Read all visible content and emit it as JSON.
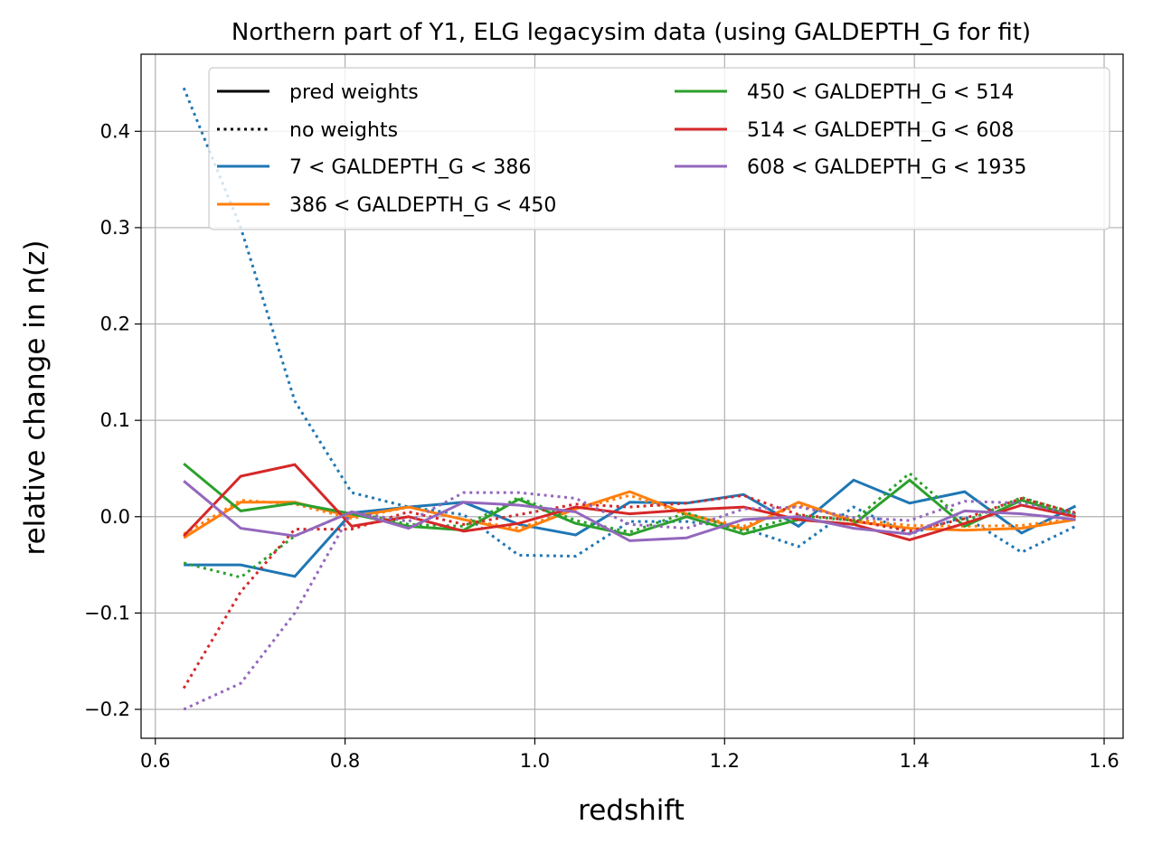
{
  "chart_data": {
    "type": "line",
    "title": "Northern part of Y1, ELG legacysim data (using GALDEPTH_G for fit)",
    "xlabel": "redshift",
    "ylabel": "relative change in n(z)",
    "xlim": [
      0.585,
      1.62
    ],
    "ylim": [
      -0.23,
      0.48
    ],
    "xticks": [
      0.6,
      0.8,
      1.0,
      1.2,
      1.4,
      1.6
    ],
    "xtick_labels": [
      "0.6",
      "0.8",
      "1.0",
      "1.2",
      "1.4",
      "1.6"
    ],
    "yticks": [
      -0.2,
      -0.1,
      0.0,
      0.1,
      0.2,
      0.3,
      0.4
    ],
    "ytick_labels": [
      "−0.2",
      "−0.1",
      "0.0",
      "0.1",
      "0.2",
      "0.3",
      "0.4"
    ],
    "grid": true,
    "legend_position": "top",
    "legend_style_entries": [
      {
        "label": "pred weights",
        "style": "solid",
        "color": "#000000"
      },
      {
        "label": "no weights",
        "style": "dotted",
        "color": "#000000"
      }
    ],
    "x": [
      0.63,
      0.69,
      0.747,
      0.807,
      0.867,
      0.925,
      0.983,
      1.043,
      1.1,
      1.16,
      1.22,
      1.278,
      1.336,
      1.395,
      1.453,
      1.513,
      1.57
    ],
    "series": [
      {
        "name": "7 < GALDEPTH_G < 386",
        "color": "#1f77b4",
        "pred": [
          -0.05,
          -0.05,
          -0.062,
          0.004,
          0.01,
          0.015,
          -0.008,
          -0.019,
          0.015,
          0.014,
          0.023,
          -0.01,
          0.038,
          0.014,
          0.026,
          -0.017,
          0.011
        ],
        "none": [
          0.445,
          0.3,
          0.12,
          0.025,
          0.01,
          0.002,
          -0.04,
          -0.041,
          -0.005,
          -0.005,
          -0.012,
          -0.031,
          0.01,
          -0.018,
          0.0,
          -0.037,
          -0.01
        ]
      },
      {
        "name": "386 < GALDEPTH_G < 450",
        "color": "#ff7f0e",
        "pred": [
          -0.022,
          0.015,
          0.015,
          0.0,
          0.01,
          -0.003,
          -0.015,
          0.008,
          0.026,
          0.003,
          -0.013,
          0.015,
          -0.005,
          -0.012,
          -0.014,
          -0.012,
          -0.003
        ],
        "none": [
          -0.018,
          0.017,
          0.013,
          -0.002,
          0.01,
          -0.003,
          -0.012,
          0.008,
          0.022,
          0.002,
          -0.01,
          0.012,
          -0.003,
          -0.009,
          -0.01,
          -0.009,
          -0.002
        ]
      },
      {
        "name": "450 < GALDEPTH_G < 514",
        "color": "#2ca02c",
        "pred": [
          0.055,
          0.006,
          0.014,
          0.003,
          -0.01,
          -0.014,
          0.018,
          -0.007,
          -0.019,
          0.0,
          -0.018,
          -0.003,
          -0.008,
          0.038,
          -0.01,
          0.017,
          0.0
        ],
        "none": [
          -0.048,
          -0.063,
          -0.02,
          0.005,
          -0.008,
          -0.01,
          0.02,
          -0.004,
          -0.016,
          0.004,
          -0.015,
          0.001,
          -0.004,
          0.045,
          -0.005,
          0.02,
          0.003
        ]
      },
      {
        "name": "514 < GALDEPTH_G < 608",
        "color": "#d62728",
        "pred": [
          -0.02,
          0.042,
          0.054,
          -0.01,
          0.0,
          -0.015,
          -0.007,
          0.01,
          0.003,
          0.007,
          0.01,
          -0.003,
          -0.008,
          -0.024,
          -0.007,
          0.012,
          0.0
        ],
        "none": [
          -0.178,
          -0.078,
          -0.013,
          -0.013,
          0.005,
          -0.008,
          0.002,
          0.013,
          0.01,
          0.014,
          0.022,
          0.002,
          -0.004,
          -0.015,
          -0.002,
          0.019,
          0.004
        ]
      },
      {
        "name": "608 < GALDEPTH_G < 1935",
        "color": "#9467bd",
        "pred": [
          0.037,
          -0.012,
          -0.02,
          0.005,
          -0.012,
          0.015,
          0.012,
          0.005,
          -0.025,
          -0.022,
          -0.003,
          0.0,
          -0.012,
          -0.018,
          0.006,
          0.003,
          -0.003
        ],
        "none": [
          -0.2,
          -0.173,
          -0.1,
          0.005,
          -0.005,
          0.025,
          0.025,
          0.019,
          -0.008,
          -0.012,
          0.008,
          0.01,
          -0.001,
          -0.004,
          0.016,
          0.014,
          0.002
        ]
      }
    ]
  }
}
